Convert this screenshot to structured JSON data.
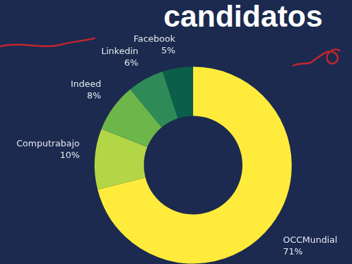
{
  "chart_data": {
    "type": "doughnut",
    "title": "candidatos",
    "categories": [
      "OCCMundial",
      "Computrabajo",
      "Indeed",
      "Linkedin",
      "Facebook"
    ],
    "values": [
      71,
      10,
      8,
      6,
      5
    ],
    "value_labels": [
      "71%",
      "10%",
      "8%",
      "6%",
      "5%"
    ],
    "colors": [
      "#ffeb3b",
      "#b3d647",
      "#6cb64a",
      "#2e8b57",
      "#0b5e4a"
    ],
    "data_labels": true
  }
}
